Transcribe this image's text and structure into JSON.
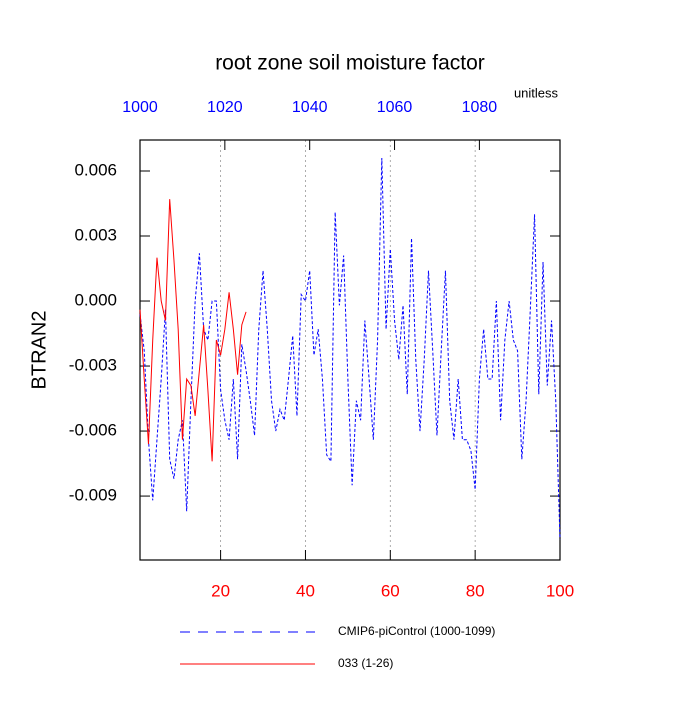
{
  "chart_data": {
    "type": "line",
    "title": "root zone soil moisture factor",
    "units": "unitless",
    "ylabel": "BTRAN2",
    "xlim": [
      1,
      100
    ],
    "xticks": [
      20,
      40,
      60,
      80,
      100
    ],
    "x2lim": [
      1000,
      1099
    ],
    "x2ticks": [
      1000,
      1020,
      1040,
      1060,
      1080
    ],
    "ylim": [
      -0.01195,
      0.00743
    ],
    "yticks": [
      0.006,
      0.003,
      {
        "value": 0,
        "label": "0.000"
      },
      -0.003,
      -0.006,
      -0.009
    ],
    "grid": true,
    "series": [
      {
        "name": "CMIP6-piControl (1000-1099)",
        "color": "#0000ff",
        "dash": true,
        "x": [
          1,
          2,
          3,
          4,
          5,
          6,
          7,
          8,
          9,
          10,
          11,
          12,
          13,
          14,
          15,
          16,
          17,
          18,
          19,
          20,
          21,
          22,
          23,
          24,
          25,
          26,
          27,
          28,
          29,
          30,
          31,
          32,
          33,
          34,
          35,
          36,
          37,
          38,
          39,
          40,
          41,
          42,
          43,
          44,
          45,
          46,
          47,
          48,
          49,
          50,
          51,
          52,
          53,
          54,
          55,
          56,
          57,
          58,
          59,
          60,
          61,
          62,
          63,
          64,
          65,
          66,
          67,
          68,
          69,
          70,
          71,
          72,
          73,
          74,
          75,
          76,
          77,
          78,
          79,
          80,
          81,
          82,
          83,
          84,
          85,
          86,
          87,
          88,
          89,
          90,
          91,
          92,
          93,
          94,
          95,
          96,
          97,
          98,
          99,
          100
        ],
        "values": [
          -0.0006,
          -0.0023,
          -0.0064,
          -0.0092,
          -0.0064,
          -0.0036,
          -0.0004,
          -0.0073,
          -0.0082,
          -0.0064,
          -0.0055,
          -0.0097,
          -0.0046,
          0.0,
          0.0022,
          -0.0013,
          -0.0018,
          0.0,
          0.0,
          -0.0041,
          -0.0055,
          -0.0064,
          -0.0036,
          -0.0073,
          -0.002,
          -0.0032,
          -0.0046,
          -0.0062,
          -0.0013,
          0.0014,
          -0.0013,
          -0.0046,
          -0.006,
          -0.005,
          -0.0055,
          -0.0036,
          -0.0016,
          -0.0053,
          0.0003,
          0.0,
          0.0014,
          -0.0025,
          -0.0013,
          -0.0036,
          -0.0071,
          -0.0074,
          0.0041,
          -0.0002,
          0.0021,
          -0.0036,
          -0.0085,
          -0.0046,
          -0.0055,
          -0.0009,
          -0.0036,
          -0.0064,
          -0.0018,
          0.0066,
          -0.0013,
          0.0024,
          -0.0009,
          -0.0027,
          -0.0002,
          -0.0043,
          0.0029,
          -0.0027,
          -0.006,
          -0.0027,
          0.0014,
          -0.0023,
          -0.0062,
          -0.0023,
          0.0014,
          -0.0046,
          -0.0064,
          -0.0036,
          -0.0064,
          -0.0064,
          -0.0069,
          -0.0087,
          -0.0036,
          -0.0013,
          -0.0036,
          -0.0036,
          0.0,
          -0.0055,
          -0.0018,
          0.0,
          -0.0018,
          -0.0023,
          -0.0073,
          -0.0046,
          -0.0004,
          0.004,
          -0.0043,
          0.0018,
          -0.0039,
          -0.0009,
          -0.0046,
          -0.011
        ]
      },
      {
        "name": "033 (1-26)",
        "color": "#ff0000",
        "dash": false,
        "x": [
          1,
          2,
          3,
          4,
          5,
          6,
          7,
          8,
          9,
          10,
          11,
          12,
          13,
          14,
          15,
          16,
          17,
          18,
          19,
          20,
          21,
          22,
          23,
          24,
          25,
          26
        ],
        "values": [
          -0.0004,
          -0.0036,
          -0.0066,
          -0.0018,
          0.002,
          0.0,
          -0.0009,
          0.0047,
          0.0019,
          -0.0013,
          -0.0064,
          -0.0036,
          -0.0039,
          -0.0053,
          -0.0032,
          -0.0011,
          -0.0041,
          -0.0074,
          -0.0018,
          -0.0025,
          -0.0013,
          0.0004,
          -0.0013,
          -0.0034,
          -0.0011,
          -0.0005
        ]
      }
    ]
  }
}
